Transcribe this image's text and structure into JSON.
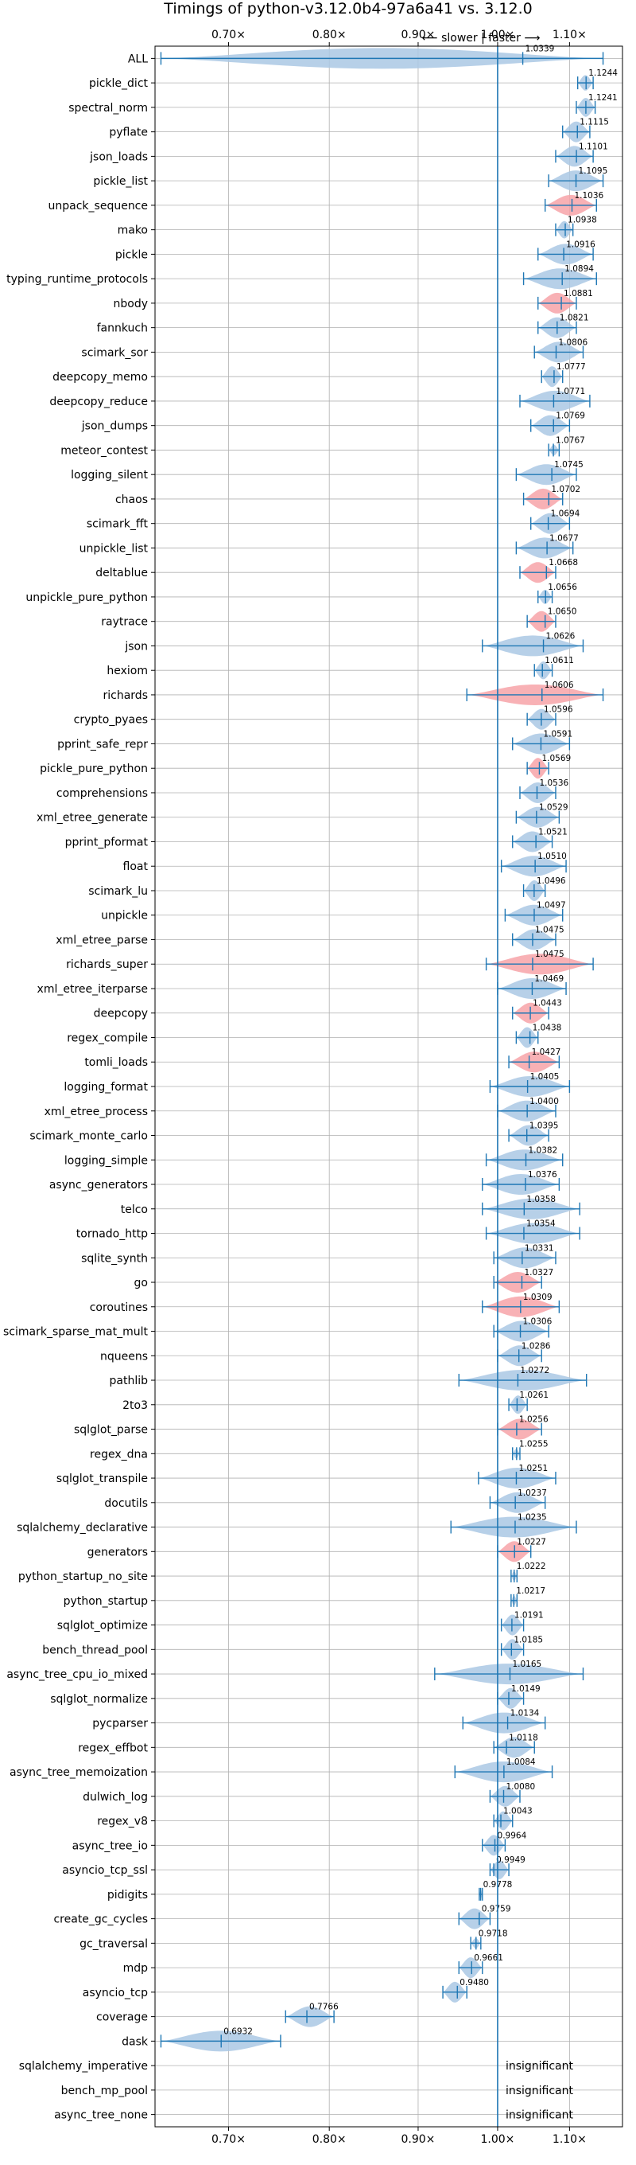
{
  "chart_data": {
    "type": "violin",
    "title": "Timings of python-v3.12.0b4-97a6a41 vs. 3.12.0",
    "direction_note": "⟵ slower  |  faster ⟶",
    "x_scale": "log",
    "xlim": [
      0.635,
      1.18
    ],
    "x_ticks": [
      0.7,
      0.8,
      0.9,
      1.0,
      1.1
    ],
    "x_tick_labels": [
      "0.70×",
      "0.80×",
      "0.90×",
      "1.00×",
      "1.10×"
    ],
    "reference_line": 1.0,
    "grid": true,
    "insignificant_label": "insignificant",
    "categories": [
      "ALL",
      "pickle_dict",
      "spectral_norm",
      "pyflate",
      "json_loads",
      "pickle_list",
      "unpack_sequence",
      "mako",
      "pickle",
      "typing_runtime_protocols",
      "nbody",
      "fannkuch",
      "scimark_sor",
      "deepcopy_memo",
      "deepcopy_reduce",
      "json_dumps",
      "meteor_contest",
      "logging_silent",
      "chaos",
      "scimark_fft",
      "unpickle_list",
      "deltablue",
      "unpickle_pure_python",
      "raytrace",
      "json",
      "hexiom",
      "richards",
      "crypto_pyaes",
      "pprint_safe_repr",
      "pickle_pure_python",
      "comprehensions",
      "xml_etree_generate",
      "pprint_pformat",
      "float",
      "scimark_lu",
      "unpickle",
      "xml_etree_parse",
      "richards_super",
      "xml_etree_iterparse",
      "deepcopy",
      "regex_compile",
      "tomli_loads",
      "logging_format",
      "xml_etree_process",
      "scimark_monte_carlo",
      "logging_simple",
      "async_generators",
      "telco",
      "tornado_http",
      "sqlite_synth",
      "go",
      "coroutines",
      "scimark_sparse_mat_mult",
      "nqueens",
      "pathlib",
      "2to3",
      "sqlglot_parse",
      "regex_dna",
      "sqlglot_transpile",
      "docutils",
      "sqlalchemy_declarative",
      "generators",
      "python_startup_no_site",
      "python_startup",
      "sqlglot_optimize",
      "bench_thread_pool",
      "async_tree_cpu_io_mixed",
      "sqlglot_normalize",
      "pycparser",
      "regex_effbot",
      "async_tree_memoization",
      "dulwich_log",
      "regex_v8",
      "async_tree_io",
      "asyncio_tcp_ssl",
      "pidigits",
      "create_gc_cycles",
      "gc_traversal",
      "mdp",
      "asyncio_tcp",
      "coverage",
      "dask",
      "sqlalchemy_imperative",
      "bench_mp_pool",
      "async_tree_none"
    ],
    "values": [
      1.0339,
      1.1244,
      1.1241,
      1.1115,
      1.1101,
      1.1095,
      1.1036,
      1.0938,
      1.0916,
      1.0894,
      1.0881,
      1.0821,
      1.0806,
      1.0777,
      1.0771,
      1.0769,
      1.0767,
      1.0745,
      1.0702,
      1.0694,
      1.0677,
      1.0668,
      1.0656,
      1.065,
      1.0626,
      1.0611,
      1.0606,
      1.0596,
      1.0591,
      1.0569,
      1.0536,
      1.0529,
      1.0521,
      1.051,
      1.0496,
      1.0497,
      1.0475,
      1.0475,
      1.0469,
      1.0443,
      1.0438,
      1.0427,
      1.0405,
      1.04,
      1.0395,
      1.0382,
      1.0376,
      1.0358,
      1.0354,
      1.0331,
      1.0327,
      1.0309,
      1.0306,
      1.0286,
      1.0272,
      1.0261,
      1.0256,
      1.0255,
      1.0251,
      1.0237,
      1.0235,
      1.0227,
      1.0222,
      1.0217,
      1.0191,
      1.0185,
      1.0165,
      1.0149,
      1.0134,
      1.0118,
      1.0084,
      1.008,
      1.0043,
      0.9964,
      0.9949,
      0.9778,
      0.9759,
      0.9718,
      0.9661,
      0.948,
      0.7766,
      0.6932,
      null,
      null,
      null
    ],
    "value_labels": [
      "1.0339",
      "1.1244",
      "1.1241",
      "1.1115",
      "1.1101",
      "1.1095",
      "1.1036",
      "1.0938",
      "1.0916",
      "1.0894",
      "1.0881",
      "1.0821",
      "1.0806",
      "1.0777",
      "1.0771",
      "1.0769",
      "1.0767",
      "1.0745",
      "1.0702",
      "1.0694",
      "1.0677",
      "1.0668",
      "1.0656",
      "1.0650",
      "1.0626",
      "1.0611",
      "1.0606",
      "1.0596",
      "1.0591",
      "1.0569",
      "1.0536",
      "1.0529",
      "1.0521",
      "1.0510",
      "1.0496",
      "1.0497",
      "1.0475",
      "1.0475",
      "1.0469",
      "1.0443",
      "1.0438",
      "1.0427",
      "1.0405",
      "1.0400",
      "1.0395",
      "1.0382",
      "1.0376",
      "1.0358",
      "1.0354",
      "1.0331",
      "1.0327",
      "1.0309",
      "1.0306",
      "1.0286",
      "1.0272",
      "1.0261",
      "1.0256",
      "1.0255",
      "1.0251",
      "1.0237",
      "1.0235",
      "1.0227",
      "1.0222",
      "1.0217",
      "1.0191",
      "1.0185",
      "1.0165",
      "1.0149",
      "1.0134",
      "1.0118",
      "1.0084",
      "1.0080",
      "1.0043",
      "0.9964",
      "0.9949",
      "0.9778",
      "0.9759",
      "0.9718",
      "0.9661",
      "0.9480",
      "0.7766",
      "0.6932",
      "",
      "",
      ""
    ],
    "low": [
      0.64,
      1.112,
      1.11,
      1.09,
      1.08,
      1.07,
      1.065,
      1.08,
      1.055,
      1.035,
      1.055,
      1.055,
      1.05,
      1.06,
      1.03,
      1.045,
      1.07,
      1.025,
      1.035,
      1.045,
      1.025,
      1.03,
      1.055,
      1.04,
      0.98,
      1.05,
      0.96,
      1.04,
      1.02,
      1.04,
      1.03,
      1.025,
      1.02,
      1.005,
      1.035,
      1.01,
      1.02,
      0.985,
      1.0,
      1.02,
      1.025,
      1.015,
      0.99,
      1.0,
      1.015,
      0.985,
      0.98,
      0.98,
      0.985,
      0.995,
      0.995,
      0.98,
      0.995,
      1.0,
      0.95,
      1.015,
      1.0,
      1.02,
      0.975,
      0.99,
      0.94,
      1.0,
      1.018,
      1.018,
      1.005,
      1.005,
      0.92,
      1.0,
      0.955,
      0.995,
      0.945,
      0.99,
      0.995,
      0.98,
      0.99,
      0.976,
      0.95,
      0.965,
      0.95,
      0.93,
      0.755,
      0.64,
      null,
      null,
      null
    ],
    "high": [
      1.15,
      1.135,
      1.138,
      1.13,
      1.135,
      1.15,
      1.14,
      1.105,
      1.135,
      1.14,
      1.11,
      1.11,
      1.12,
      1.09,
      1.13,
      1.1,
      1.085,
      1.11,
      1.09,
      1.1,
      1.105,
      1.08,
      1.075,
      1.08,
      1.12,
      1.075,
      1.15,
      1.08,
      1.1,
      1.07,
      1.08,
      1.085,
      1.075,
      1.095,
      1.065,
      1.09,
      1.08,
      1.135,
      1.095,
      1.07,
      1.055,
      1.085,
      1.1,
      1.08,
      1.07,
      1.09,
      1.085,
      1.115,
      1.115,
      1.08,
      1.06,
      1.085,
      1.07,
      1.06,
      1.125,
      1.04,
      1.06,
      1.03,
      1.08,
      1.065,
      1.11,
      1.045,
      1.026,
      1.026,
      1.035,
      1.035,
      1.12,
      1.035,
      1.065,
      1.05,
      1.075,
      1.03,
      1.02,
      1.01,
      1.015,
      0.98,
      0.99,
      0.978,
      0.98,
      0.96,
      0.805,
      0.75,
      null,
      null,
      null
    ],
    "significant_slower": [
      false,
      false,
      false,
      false,
      false,
      false,
      true,
      false,
      false,
      false,
      true,
      false,
      false,
      false,
      false,
      false,
      false,
      false,
      true,
      false,
      false,
      true,
      false,
      true,
      false,
      false,
      true,
      false,
      false,
      true,
      false,
      false,
      false,
      false,
      false,
      false,
      false,
      true,
      false,
      true,
      false,
      true,
      false,
      false,
      false,
      false,
      false,
      false,
      false,
      false,
      true,
      true,
      false,
      false,
      false,
      false,
      true,
      false,
      false,
      false,
      false,
      true,
      false,
      false,
      false,
      false,
      false,
      false,
      false,
      false,
      false,
      false,
      false,
      false,
      false,
      false,
      false,
      false,
      false,
      false,
      false,
      false,
      false,
      false,
      false
    ]
  },
  "colors": {
    "violin_default": "#aac8e4",
    "violin_highlight": "#f7a3a8",
    "line": "#1f77b4",
    "grid": "#b0b0b0"
  }
}
